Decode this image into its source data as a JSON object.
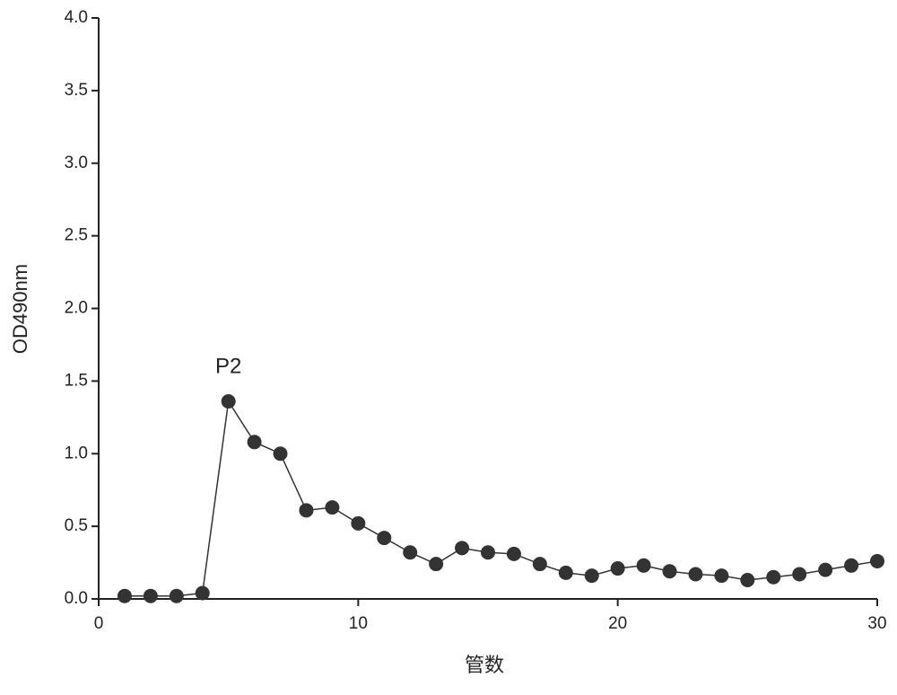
{
  "chart_data": {
    "type": "line",
    "x_label": "管数",
    "y_label": "OD490nm",
    "annotations": [
      {
        "text": "P2",
        "x": 5
      }
    ],
    "x": [
      1,
      2,
      3,
      4,
      5,
      6,
      7,
      8,
      9,
      10,
      11,
      12,
      13,
      14,
      15,
      16,
      17,
      18,
      19,
      20,
      21,
      22,
      23,
      24,
      25,
      26,
      27,
      28,
      29,
      30
    ],
    "series": [
      {
        "color": "#333333",
        "values": [
          0.02,
          0.02,
          0.02,
          0.04,
          1.36,
          1.08,
          1.0,
          0.61,
          0.63,
          0.52,
          0.42,
          0.32,
          0.24,
          0.35,
          0.32,
          0.31,
          0.24,
          0.18,
          0.16,
          0.21,
          0.23,
          0.19,
          0.17,
          0.16,
          0.13,
          0.15,
          0.17,
          0.2,
          0.23,
          0.26
        ]
      }
    ],
    "xlim": [
      0,
      30
    ],
    "xticks": [
      0,
      10,
      20,
      30
    ],
    "ylim": [
      0,
      4
    ],
    "yticks": [
      {
        "value": 0,
        "label": "0.0"
      },
      0.5,
      {
        "value": 1,
        "label": "1.0"
      },
      1.5,
      {
        "value": 2,
        "label": "2.0"
      },
      2.5,
      {
        "value": 3,
        "label": "3.0"
      },
      3.5,
      {
        "value": 4,
        "label": "4.0"
      }
    ],
    "grid": false
  }
}
